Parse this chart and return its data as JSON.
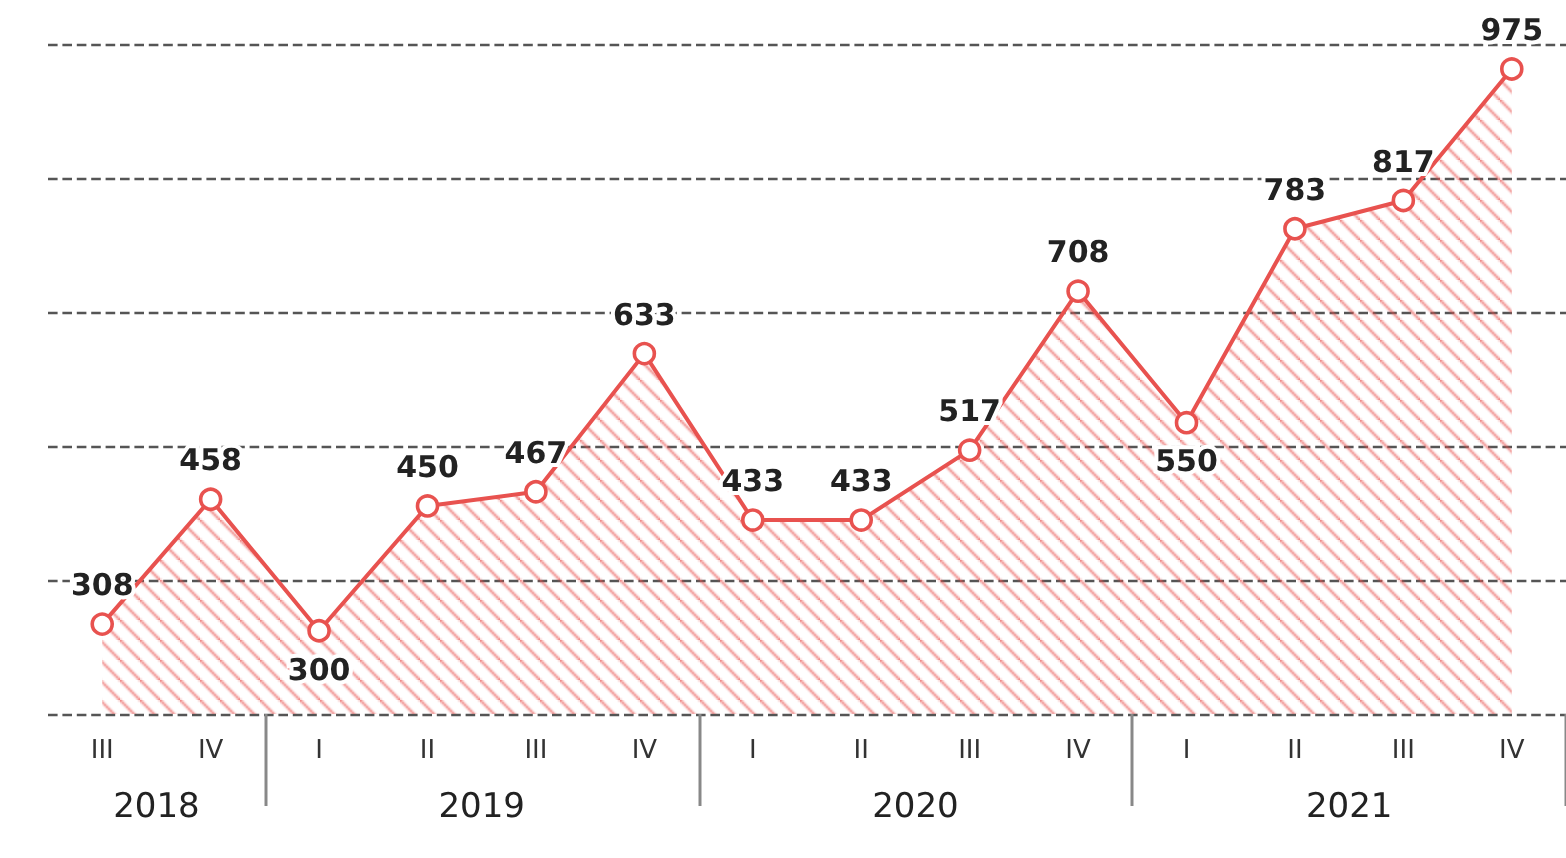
{
  "chart_data": {
    "type": "area",
    "categories": [
      "III",
      "IV",
      "I",
      "II",
      "III",
      "IV",
      "I",
      "II",
      "III",
      "IV",
      "I",
      "II",
      "III",
      "IV"
    ],
    "series": [
      {
        "color": "#e8524f",
        "values": [
          308,
          458,
          300,
          450,
          467,
          633,
          433,
          433,
          517,
          708,
          550,
          783,
          817,
          975
        ]
      }
    ],
    "annotations": [
      "2018",
      "2019",
      "2020",
      "2021"
    ],
    "ylim": [
      200,
      1005
    ],
    "yticks": [
      {
        "value": 200,
        "label": null
      },
      {
        "value": 361,
        "label": null
      },
      {
        "value": 522,
        "label": null
      },
      {
        "value": 683,
        "label": null
      },
      {
        "value": 844,
        "label": null
      },
      {
        "value": 1005,
        "label": null
      }
    ],
    "grid": "y",
    "data_labels": true,
    "marker": "circle",
    "line_style": "solid"
  }
}
